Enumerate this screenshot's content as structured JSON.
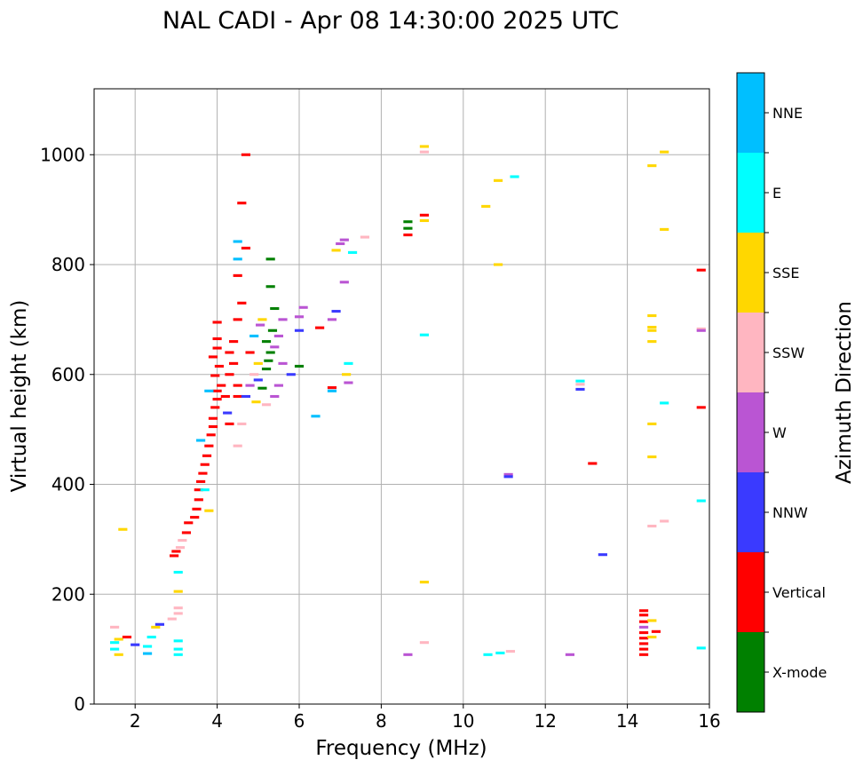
{
  "chart_data": {
    "type": "scatter",
    "title": "NAL CADI - Apr 08 14:30:00 2025 UTC",
    "xlabel": "Frequency (MHz)",
    "ylabel": "Virtual height (km)",
    "xlim": [
      1,
      16
    ],
    "ylim": [
      0,
      1120
    ],
    "xticks": [
      2,
      4,
      6,
      8,
      10,
      12,
      14,
      16
    ],
    "yticks": [
      0,
      200,
      400,
      600,
      800,
      1000
    ],
    "grid": true,
    "colorbar": {
      "label": "Azimuth Direction",
      "categories": [
        {
          "name": "X-mode",
          "color": "#008000"
        },
        {
          "name": "Vertical",
          "color": "#ff0000"
        },
        {
          "name": "NNW",
          "color": "#3a3aff"
        },
        {
          "name": "W",
          "color": "#ba55d3"
        },
        {
          "name": "SSW",
          "color": "#ffb6c1"
        },
        {
          "name": "SSE",
          "color": "#ffd700"
        },
        {
          "name": "E",
          "color": "#00ffff"
        },
        {
          "name": "NNE",
          "color": "#00bfff"
        }
      ]
    },
    "points": [
      {
        "f": 1.5,
        "h": 140,
        "c": "SSW"
      },
      {
        "f": 1.5,
        "h": 112,
        "c": "E"
      },
      {
        "f": 1.5,
        "h": 100,
        "c": "E"
      },
      {
        "f": 1.6,
        "h": 118,
        "c": "SSE"
      },
      {
        "f": 1.6,
        "h": 90,
        "c": "SSE"
      },
      {
        "f": 1.8,
        "h": 122,
        "c": "Vertical"
      },
      {
        "f": 1.7,
        "h": 318,
        "c": "SSE"
      },
      {
        "f": 2.0,
        "h": 108,
        "c": "NNW"
      },
      {
        "f": 2.3,
        "h": 105,
        "c": "E"
      },
      {
        "f": 2.3,
        "h": 92,
        "c": "NNE"
      },
      {
        "f": 2.4,
        "h": 122,
        "c": "E"
      },
      {
        "f": 2.5,
        "h": 140,
        "c": "SSE"
      },
      {
        "f": 2.6,
        "h": 145,
        "c": "NNW"
      },
      {
        "f": 2.9,
        "h": 155,
        "c": "SSW"
      },
      {
        "f": 3.05,
        "h": 240,
        "c": "E"
      },
      {
        "f": 3.05,
        "h": 205,
        "c": "SSE"
      },
      {
        "f": 3.05,
        "h": 175,
        "c": "SSW"
      },
      {
        "f": 3.05,
        "h": 165,
        "c": "SSW"
      },
      {
        "f": 3.05,
        "h": 115,
        "c": "E"
      },
      {
        "f": 3.05,
        "h": 100,
        "c": "E"
      },
      {
        "f": 3.05,
        "h": 90,
        "c": "E"
      },
      {
        "f": 2.95,
        "h": 270,
        "c": "Vertical"
      },
      {
        "f": 3.0,
        "h": 278,
        "c": "Vertical"
      },
      {
        "f": 3.1,
        "h": 285,
        "c": "SSW"
      },
      {
        "f": 3.15,
        "h": 298,
        "c": "SSW"
      },
      {
        "f": 3.25,
        "h": 312,
        "c": "Vertical"
      },
      {
        "f": 3.3,
        "h": 330,
        "c": "Vertical"
      },
      {
        "f": 3.45,
        "h": 340,
        "c": "Vertical"
      },
      {
        "f": 3.5,
        "h": 355,
        "c": "Vertical"
      },
      {
        "f": 3.55,
        "h": 372,
        "c": "Vertical"
      },
      {
        "f": 3.55,
        "h": 390,
        "c": "Vertical"
      },
      {
        "f": 3.6,
        "h": 405,
        "c": "Vertical"
      },
      {
        "f": 3.65,
        "h": 420,
        "c": "Vertical"
      },
      {
        "f": 3.7,
        "h": 436,
        "c": "Vertical"
      },
      {
        "f": 3.75,
        "h": 452,
        "c": "Vertical"
      },
      {
        "f": 3.8,
        "h": 470,
        "c": "Vertical"
      },
      {
        "f": 3.8,
        "h": 352,
        "c": "SSE"
      },
      {
        "f": 3.7,
        "h": 390,
        "c": "E"
      },
      {
        "f": 3.6,
        "h": 480,
        "c": "NNE"
      },
      {
        "f": 3.85,
        "h": 490,
        "c": "Vertical"
      },
      {
        "f": 3.9,
        "h": 505,
        "c": "Vertical"
      },
      {
        "f": 3.9,
        "h": 520,
        "c": "Vertical"
      },
      {
        "f": 3.95,
        "h": 540,
        "c": "Vertical"
      },
      {
        "f": 4.0,
        "h": 555,
        "c": "Vertical"
      },
      {
        "f": 4.0,
        "h": 570,
        "c": "Vertical"
      },
      {
        "f": 4.1,
        "h": 580,
        "c": "Vertical"
      },
      {
        "f": 3.95,
        "h": 598,
        "c": "Vertical"
      },
      {
        "f": 4.05,
        "h": 615,
        "c": "Vertical"
      },
      {
        "f": 3.9,
        "h": 632,
        "c": "Vertical"
      },
      {
        "f": 4.0,
        "h": 648,
        "c": "Vertical"
      },
      {
        "f": 4.0,
        "h": 665,
        "c": "Vertical"
      },
      {
        "f": 4.0,
        "h": 695,
        "c": "Vertical"
      },
      {
        "f": 4.3,
        "h": 640,
        "c": "Vertical"
      },
      {
        "f": 4.4,
        "h": 620,
        "c": "Vertical"
      },
      {
        "f": 4.3,
        "h": 600,
        "c": "Vertical"
      },
      {
        "f": 4.2,
        "h": 560,
        "c": "Vertical"
      },
      {
        "f": 4.25,
        "h": 530,
        "c": "NNW"
      },
      {
        "f": 4.3,
        "h": 510,
        "c": "Vertical"
      },
      {
        "f": 4.5,
        "h": 560,
        "c": "Vertical"
      },
      {
        "f": 4.5,
        "h": 580,
        "c": "Vertical"
      },
      {
        "f": 4.4,
        "h": 660,
        "c": "Vertical"
      },
      {
        "f": 4.5,
        "h": 700,
        "c": "Vertical"
      },
      {
        "f": 4.6,
        "h": 730,
        "c": "Vertical"
      },
      {
        "f": 4.5,
        "h": 780,
        "c": "Vertical"
      },
      {
        "f": 4.7,
        "h": 830,
        "c": "Vertical"
      },
      {
        "f": 4.6,
        "h": 912,
        "c": "Vertical"
      },
      {
        "f": 4.7,
        "h": 1000,
        "c": "Vertical"
      },
      {
        "f": 4.5,
        "h": 842,
        "c": "NNE"
      },
      {
        "f": 4.5,
        "h": 810,
        "c": "NNE"
      },
      {
        "f": 3.8,
        "h": 570,
        "c": "NNE"
      },
      {
        "f": 4.6,
        "h": 510,
        "c": "SSW"
      },
      {
        "f": 4.5,
        "h": 470,
        "c": "SSW"
      },
      {
        "f": 4.7,
        "h": 560,
        "c": "NNW"
      },
      {
        "f": 4.8,
        "h": 580,
        "c": "W"
      },
      {
        "f": 4.9,
        "h": 600,
        "c": "SSW"
      },
      {
        "f": 5.0,
        "h": 590,
        "c": "NNW"
      },
      {
        "f": 5.1,
        "h": 575,
        "c": "X-mode"
      },
      {
        "f": 5.2,
        "h": 610,
        "c": "X-mode"
      },
      {
        "f": 5.25,
        "h": 625,
        "c": "X-mode"
      },
      {
        "f": 5.3,
        "h": 640,
        "c": "X-mode"
      },
      {
        "f": 5.2,
        "h": 660,
        "c": "X-mode"
      },
      {
        "f": 5.35,
        "h": 680,
        "c": "X-mode"
      },
      {
        "f": 5.4,
        "h": 720,
        "c": "X-mode"
      },
      {
        "f": 5.3,
        "h": 760,
        "c": "X-mode"
      },
      {
        "f": 5.3,
        "h": 810,
        "c": "X-mode"
      },
      {
        "f": 5.1,
        "h": 700,
        "c": "SSE"
      },
      {
        "f": 5.0,
        "h": 620,
        "c": "SSE"
      },
      {
        "f": 5.4,
        "h": 650,
        "c": "W"
      },
      {
        "f": 5.5,
        "h": 670,
        "c": "W"
      },
      {
        "f": 5.6,
        "h": 620,
        "c": "W"
      },
      {
        "f": 5.5,
        "h": 580,
        "c": "W"
      },
      {
        "f": 5.4,
        "h": 560,
        "c": "W"
      },
      {
        "f": 5.2,
        "h": 545,
        "c": "SSW"
      },
      {
        "f": 5.6,
        "h": 700,
        "c": "W"
      },
      {
        "f": 4.9,
        "h": 670,
        "c": "NNE"
      },
      {
        "f": 4.8,
        "h": 640,
        "c": "Vertical"
      },
      {
        "f": 5.05,
        "h": 690,
        "c": "W"
      },
      {
        "f": 4.95,
        "h": 550,
        "c": "SSE"
      },
      {
        "f": 5.8,
        "h": 600,
        "c": "NNW"
      },
      {
        "f": 6.0,
        "h": 615,
        "c": "X-mode"
      },
      {
        "f": 6.0,
        "h": 680,
        "c": "NNW"
      },
      {
        "f": 6.0,
        "h": 705,
        "c": "W"
      },
      {
        "f": 6.1,
        "h": 722,
        "c": "W"
      },
      {
        "f": 6.5,
        "h": 685,
        "c": "Vertical"
      },
      {
        "f": 6.8,
        "h": 700,
        "c": "W"
      },
      {
        "f": 6.9,
        "h": 715,
        "c": "NNW"
      },
      {
        "f": 6.4,
        "h": 524,
        "c": "NNE"
      },
      {
        "f": 6.8,
        "h": 570,
        "c": "NNE"
      },
      {
        "f": 6.8,
        "h": 576,
        "c": "Vertical"
      },
      {
        "f": 7.2,
        "h": 620,
        "c": "E"
      },
      {
        "f": 7.15,
        "h": 600,
        "c": "SSE"
      },
      {
        "f": 7.2,
        "h": 585,
        "c": "W"
      },
      {
        "f": 7.1,
        "h": 768,
        "c": "W"
      },
      {
        "f": 6.9,
        "h": 826,
        "c": "SSE"
      },
      {
        "f": 7.0,
        "h": 838,
        "c": "W"
      },
      {
        "f": 7.1,
        "h": 845,
        "c": "W"
      },
      {
        "f": 7.3,
        "h": 822,
        "c": "E"
      },
      {
        "f": 7.6,
        "h": 850,
        "c": "SSW"
      },
      {
        "f": 8.65,
        "h": 878,
        "c": "X-mode"
      },
      {
        "f": 8.65,
        "h": 866,
        "c": "X-mode"
      },
      {
        "f": 8.65,
        "h": 854,
        "c": "Vertical"
      },
      {
        "f": 9.05,
        "h": 890,
        "c": "Vertical"
      },
      {
        "f": 9.05,
        "h": 880,
        "c": "SSE"
      },
      {
        "f": 9.05,
        "h": 1015,
        "c": "SSE"
      },
      {
        "f": 9.05,
        "h": 1005,
        "c": "SSW"
      },
      {
        "f": 9.05,
        "h": 672,
        "c": "E"
      },
      {
        "f": 9.05,
        "h": 222,
        "c": "SSE"
      },
      {
        "f": 9.05,
        "h": 112,
        "c": "SSW"
      },
      {
        "f": 8.65,
        "h": 90,
        "c": "W"
      },
      {
        "f": 10.55,
        "h": 906,
        "c": "SSE"
      },
      {
        "f": 10.85,
        "h": 953,
        "c": "SSE"
      },
      {
        "f": 11.25,
        "h": 960,
        "c": "E"
      },
      {
        "f": 10.85,
        "h": 800,
        "c": "SSE"
      },
      {
        "f": 11.1,
        "h": 418,
        "c": "W"
      },
      {
        "f": 11.1,
        "h": 414,
        "c": "NNW"
      },
      {
        "f": 10.6,
        "h": 90,
        "c": "E"
      },
      {
        "f": 10.9,
        "h": 93,
        "c": "E"
      },
      {
        "f": 11.15,
        "h": 96,
        "c": "SSW"
      },
      {
        "f": 12.6,
        "h": 90,
        "c": "W"
      },
      {
        "f": 12.85,
        "h": 588,
        "c": "E"
      },
      {
        "f": 12.85,
        "h": 582,
        "c": "SSW"
      },
      {
        "f": 12.85,
        "h": 573,
        "c": "NNW"
      },
      {
        "f": 13.15,
        "h": 438,
        "c": "Vertical"
      },
      {
        "f": 13.4,
        "h": 272,
        "c": "NNW"
      },
      {
        "f": 14.4,
        "h": 170,
        "c": "Vertical"
      },
      {
        "f": 14.4,
        "h": 162,
        "c": "Vertical"
      },
      {
        "f": 14.4,
        "h": 150,
        "c": "Vertical"
      },
      {
        "f": 14.4,
        "h": 140,
        "c": "W"
      },
      {
        "f": 14.4,
        "h": 130,
        "c": "Vertical"
      },
      {
        "f": 14.4,
        "h": 120,
        "c": "Vertical"
      },
      {
        "f": 14.4,
        "h": 110,
        "c": "Vertical"
      },
      {
        "f": 14.4,
        "h": 100,
        "c": "Vertical"
      },
      {
        "f": 14.4,
        "h": 90,
        "c": "Vertical"
      },
      {
        "f": 14.7,
        "h": 132,
        "c": "Vertical"
      },
      {
        "f": 14.6,
        "h": 152,
        "c": "SSE"
      },
      {
        "f": 14.6,
        "h": 122,
        "c": "SSE"
      },
      {
        "f": 14.6,
        "h": 324,
        "c": "SSW"
      },
      {
        "f": 14.9,
        "h": 333,
        "c": "SSW"
      },
      {
        "f": 14.6,
        "h": 450,
        "c": "SSE"
      },
      {
        "f": 14.6,
        "h": 510,
        "c": "SSE"
      },
      {
        "f": 14.9,
        "h": 548,
        "c": "E"
      },
      {
        "f": 14.6,
        "h": 660,
        "c": "SSE"
      },
      {
        "f": 14.6,
        "h": 680,
        "c": "SSE"
      },
      {
        "f": 14.6,
        "h": 686,
        "c": "SSE"
      },
      {
        "f": 14.6,
        "h": 707,
        "c": "SSE"
      },
      {
        "f": 14.9,
        "h": 864,
        "c": "SSE"
      },
      {
        "f": 14.6,
        "h": 980,
        "c": "SSE"
      },
      {
        "f": 14.9,
        "h": 1005,
        "c": "SSE"
      },
      {
        "f": 15.8,
        "h": 790,
        "c": "Vertical"
      },
      {
        "f": 15.8,
        "h": 683,
        "c": "SSW"
      },
      {
        "f": 15.8,
        "h": 680,
        "c": "W"
      },
      {
        "f": 15.8,
        "h": 540,
        "c": "Vertical"
      },
      {
        "f": 15.8,
        "h": 370,
        "c": "E"
      },
      {
        "f": 15.8,
        "h": 102,
        "c": "E"
      }
    ]
  }
}
